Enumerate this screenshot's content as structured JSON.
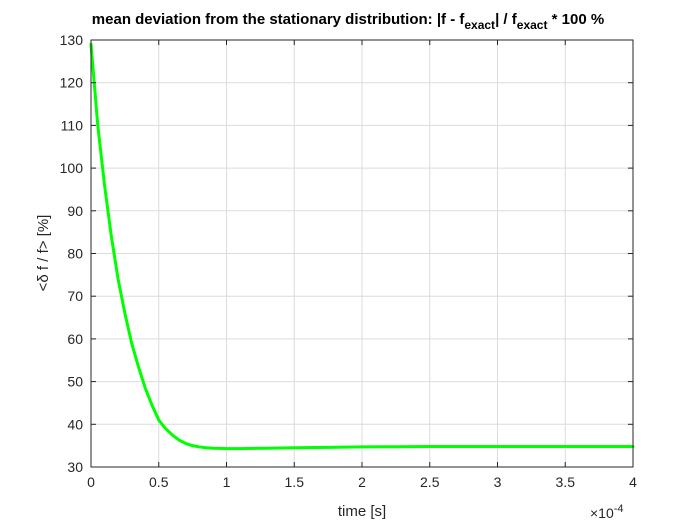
{
  "chart_data": {
    "type": "line",
    "title": "mean deviation from the stationary distribution: |f - f_exact| / f_exact * 100 %",
    "title_parts": {
      "a": "mean deviation from the stationary distribution: |f - f",
      "sub1": "exact",
      "b": "| / f",
      "sub2": "exact",
      "c": " * 100 %"
    },
    "xlabel": "time [s]",
    "ylabel": "<δ f / f> [%]",
    "x_exponent_base": "×10",
    "x_exponent_power": "-4",
    "xlim": [
      0,
      4
    ],
    "ylim": [
      30,
      130
    ],
    "xticks": [
      0,
      0.5,
      1,
      1.5,
      2,
      2.5,
      3,
      3.5,
      4
    ],
    "yticks": [
      30,
      40,
      50,
      60,
      70,
      80,
      90,
      100,
      110,
      120,
      130
    ],
    "grid": true,
    "line_color": "#00ff00",
    "series": [
      {
        "x": [
          0,
          0.05,
          0.1,
          0.15,
          0.2,
          0.25,
          0.3,
          0.35,
          0.4,
          0.45,
          0.5,
          0.55,
          0.6,
          0.65,
          0.7,
          0.75,
          0.8,
          0.85,
          0.9,
          0.95,
          1.0,
          1.1,
          1.2,
          1.3,
          1.5,
          1.75,
          2.0,
          2.25,
          2.5,
          2.75,
          3.0,
          3.25,
          3.5,
          3.75,
          4.0
        ],
        "values": [
          129,
          110,
          96,
          84,
          74,
          66,
          59,
          53.5,
          48.5,
          44.5,
          41,
          39,
          37.5,
          36.3,
          35.5,
          35,
          34.7,
          34.5,
          34.4,
          34.35,
          34.3,
          34.3,
          34.35,
          34.4,
          34.5,
          34.6,
          34.7,
          34.75,
          34.8,
          34.8,
          34.8,
          34.8,
          34.8,
          34.8,
          34.8
        ]
      }
    ]
  }
}
